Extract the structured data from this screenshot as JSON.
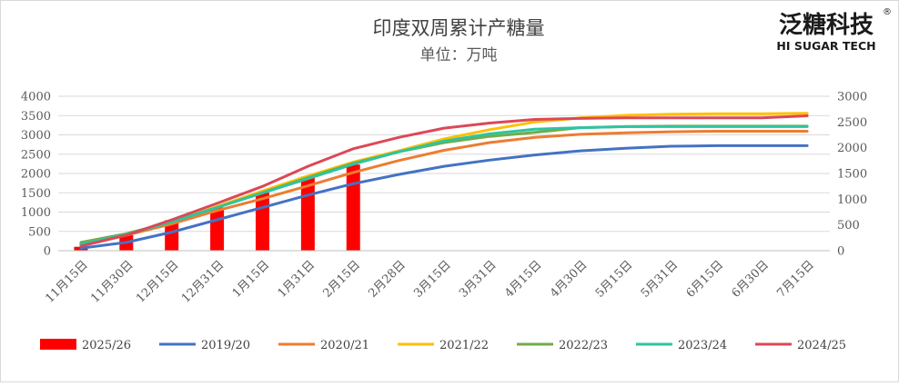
{
  "chart_data": {
    "type": "bar+line",
    "title": "印度双周累计产糖量",
    "subtitle": "单位：万吨",
    "logo": {
      "cn": "泛糖科技",
      "en": "HI SUGAR TECH",
      "reg": "®"
    },
    "categories": [
      "11月15日",
      "11月30日",
      "12月15日",
      "12月31日",
      "1月15日",
      "1月31日",
      "2月15日",
      "2月28日",
      "3月15日",
      "3月31日",
      "4月15日",
      "4月30日",
      "5月15日",
      "5月31日",
      "6月15日",
      "6月30日",
      "7月15日"
    ],
    "left_axis": {
      "ylim": [
        0,
        4000
      ],
      "ticks": [
        "0",
        "500",
        "1000",
        "1500",
        "2000",
        "2500",
        "3000",
        "3500",
        "4000"
      ]
    },
    "right_axis": {
      "ylim": [
        0,
        3000
      ],
      "ticks": [
        "0",
        "500",
        "1000",
        "1500",
        "2000",
        "2500",
        "3000"
      ]
    },
    "grid": true,
    "legend_position": "bottom",
    "bar_series": {
      "name": "2025/26",
      "axis": "left",
      "color": "#ff0000",
      "values": [
        100,
        400,
        790,
        1120,
        1500,
        1920,
        2230,
        null,
        null,
        null,
        null,
        null,
        null,
        null,
        null,
        null,
        null
      ]
    },
    "series": [
      {
        "name": "2019/20",
        "axis": "right",
        "color": "#4472c4",
        "values": [
          50,
          160,
          360,
          600,
          840,
          1080,
          1300,
          1480,
          1640,
          1760,
          1860,
          1940,
          1990,
          2030,
          2040,
          2040,
          2040
        ]
      },
      {
        "name": "2020/21",
        "axis": "right",
        "color": "#ed7d31",
        "values": [
          120,
          300,
          520,
          780,
          1010,
          1260,
          1520,
          1750,
          1950,
          2100,
          2200,
          2260,
          2290,
          2310,
          2320,
          2320,
          2320
        ]
      },
      {
        "name": "2021/22",
        "axis": "right",
        "color": "#ffc000",
        "values": [
          130,
          320,
          560,
          860,
          1160,
          1450,
          1720,
          1940,
          2170,
          2350,
          2500,
          2580,
          2630,
          2650,
          2660,
          2660,
          2670
        ]
      },
      {
        "name": "2022/23",
        "axis": "right",
        "color": "#70ad47",
        "values": [
          160,
          330,
          560,
          840,
          1130,
          1420,
          1700,
          1920,
          2100,
          2220,
          2300,
          2390,
          2410,
          2420,
          2420,
          2420,
          2420
        ]
      },
      {
        "name": "2023/24",
        "axis": "right",
        "color": "#2ec4a0",
        "values": [
          130,
          310,
          560,
          840,
          1120,
          1400,
          1680,
          1920,
          2130,
          2270,
          2360,
          2390,
          2410,
          2410,
          2410,
          2410,
          2410
        ]
      },
      {
        "name": "2024/25",
        "axis": "right",
        "color": "#dc4856",
        "values": [
          90,
          300,
          600,
          920,
          1250,
          1640,
          1980,
          2200,
          2380,
          2480,
          2550,
          2570,
          2580,
          2580,
          2580,
          2580,
          2620
        ]
      }
    ]
  }
}
